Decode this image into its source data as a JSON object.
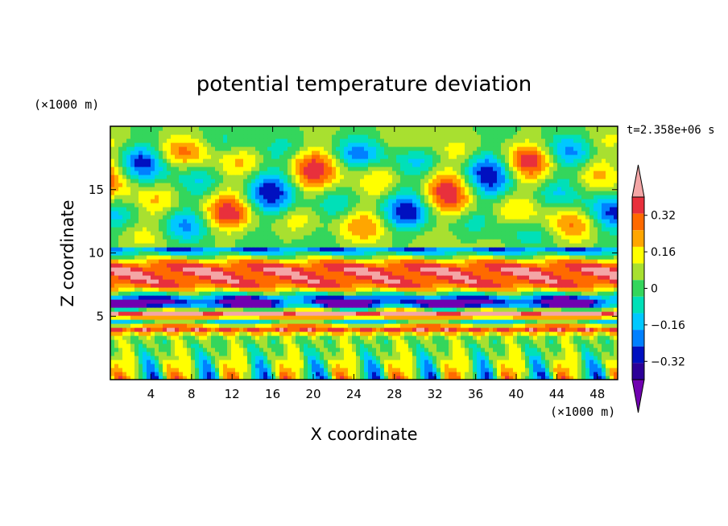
{
  "chart_data": {
    "type": "heatmap",
    "title": "potential temperature deviation",
    "xlabel": "X coordinate",
    "ylabel": "Z coordinate",
    "x_unit": "(×1000 m)",
    "y_unit": "(×1000 m)",
    "time_label": "t=2.358e+06 s",
    "xlim": [
      0,
      50
    ],
    "ylim": [
      0,
      20
    ],
    "x_ticks": [
      4,
      8,
      12,
      16,
      20,
      24,
      28,
      32,
      36,
      40,
      44,
      48
    ],
    "y_ticks": [
      5,
      10,
      15
    ],
    "colorbar": {
      "levels": [
        -0.4,
        -0.32,
        -0.24,
        -0.16,
        -0.08,
        0,
        0.08,
        0.16,
        0.24,
        0.32,
        0.4
      ],
      "tick_labels": [
        "0.32",
        "0.16",
        "0",
        "−0.16",
        "−0.32"
      ],
      "tick_values": [
        0.32,
        0.16,
        0,
        -0.16,
        -0.32
      ],
      "colors_top_to_bottom": [
        "#f4a6a6",
        "#e8303c",
        "#ff6a00",
        "#ffa600",
        "#ffff00",
        "#a8e030",
        "#34d65c",
        "#00e0b8",
        "#00c8ff",
        "#0080ff",
        "#0010c0",
        "#2c0098",
        "#7000b0"
      ],
      "extend": "both"
    }
  }
}
